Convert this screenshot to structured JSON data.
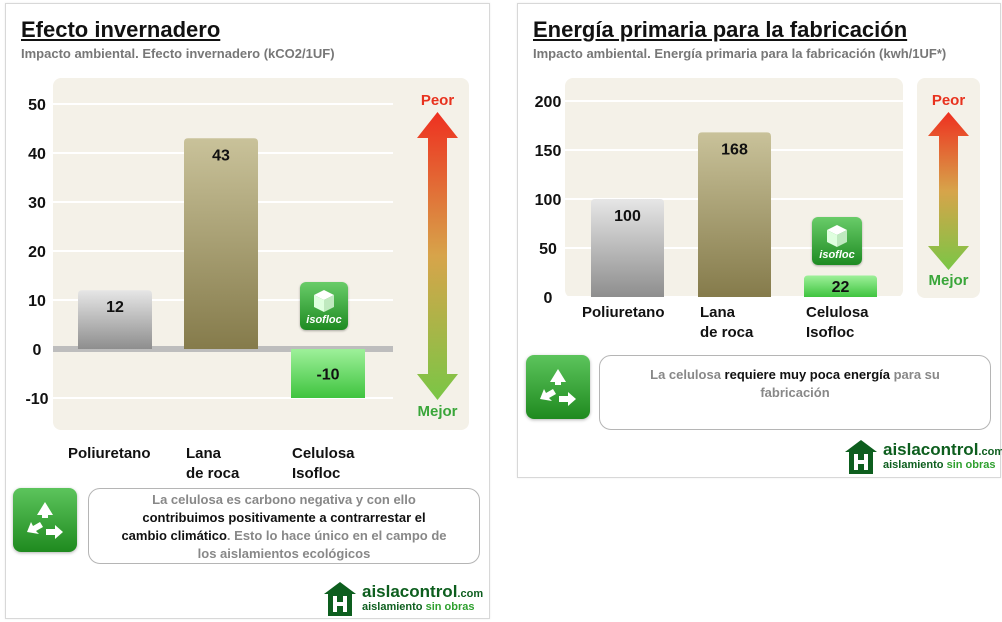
{
  "colors": {
    "grey_bar": "#9a9a9a",
    "lana_bar": "#8c8356",
    "celulosa_bar": "#3cc43c",
    "arrow_top": "#e8321e",
    "arrow_bottom": "#6fc23f",
    "logo_green": "#0d5e1e"
  },
  "icons": {
    "note": "recycle-icon",
    "brand": "house-logo-icon",
    "product": "isofloc-cube-icon"
  },
  "left": {
    "title": "Efecto invernadero",
    "subtitle": "Impacto ambiental. Efecto invernadero (kCO2/1UF)",
    "arrow": {
      "top": "Peor",
      "bottom": "Mejor"
    },
    "categories": [
      {
        "line1": "Poliuretano",
        "line2": ""
      },
      {
        "line1": "Lana",
        "line2": "de roca"
      },
      {
        "line1": "Celulosa",
        "line2": "Isofloc"
      }
    ],
    "badge": "isofloc",
    "note": {
      "p1": "La celulosa es carbono negativa y con ello",
      "p2": "contribuimos positivamente a contrarrestar el",
      "p3": "cambio climático",
      "p4": ". Esto lo hace único en el campo de",
      "p5": "los aislamientos ecológicos"
    },
    "logo": {
      "name": "aislacontrol",
      "tld": ".com",
      "slogan_a": "aislamiento",
      "slogan_b": "sin obras"
    }
  },
  "right": {
    "title": "Energía primaria para la fabricación",
    "subtitle": "Impacto ambiental. Energía primaria para la fabricación (kwh/1UF*)",
    "arrow": {
      "top": "Peor",
      "bottom": "Mejor"
    },
    "categories": [
      {
        "line1": "Poliuretano",
        "line2": ""
      },
      {
        "line1": "Lana",
        "line2": "de roca"
      },
      {
        "line1": "Celulosa",
        "line2": "Isofloc"
      }
    ],
    "badge": "isofloc",
    "note": {
      "p1": "La celulosa ",
      "p2": "requiere muy poca energía",
      "p3": " para su",
      "p4": "fabricación"
    },
    "logo": {
      "name": "aislacontrol",
      "tld": ".com",
      "slogan_a": "aislamiento",
      "slogan_b": "sin obras"
    }
  },
  "chart_data": [
    {
      "type": "bar",
      "title": "Efecto invernadero",
      "subtitle": "Impacto ambiental. Efecto invernadero (kCO2/1UF)",
      "categories": [
        "Poliuretano",
        "Lana de roca",
        "Celulosa Isofloc"
      ],
      "values": [
        12,
        43,
        -10
      ],
      "value_labels": [
        "12",
        "43",
        "-10"
      ],
      "yticks": [
        "-10",
        "0",
        "10",
        "20",
        "30",
        "40",
        "50"
      ],
      "ylim": [
        -10,
        50
      ],
      "grid": true,
      "legend": "none"
    },
    {
      "type": "bar",
      "title": "Energía primaria para la fabricación",
      "subtitle": "Impacto ambiental. Energía primaria para la fabricación (kwh/1UF*)",
      "categories": [
        "Poliuretano",
        "Lana de roca",
        "Celulosa Isofloc"
      ],
      "values": [
        100,
        168,
        22
      ],
      "value_labels": [
        "100",
        "168",
        "22"
      ],
      "yticks": [
        "0",
        "50",
        "100",
        "150",
        "200"
      ],
      "ylim": [
        0,
        200
      ],
      "grid": true,
      "legend": "none"
    }
  ]
}
